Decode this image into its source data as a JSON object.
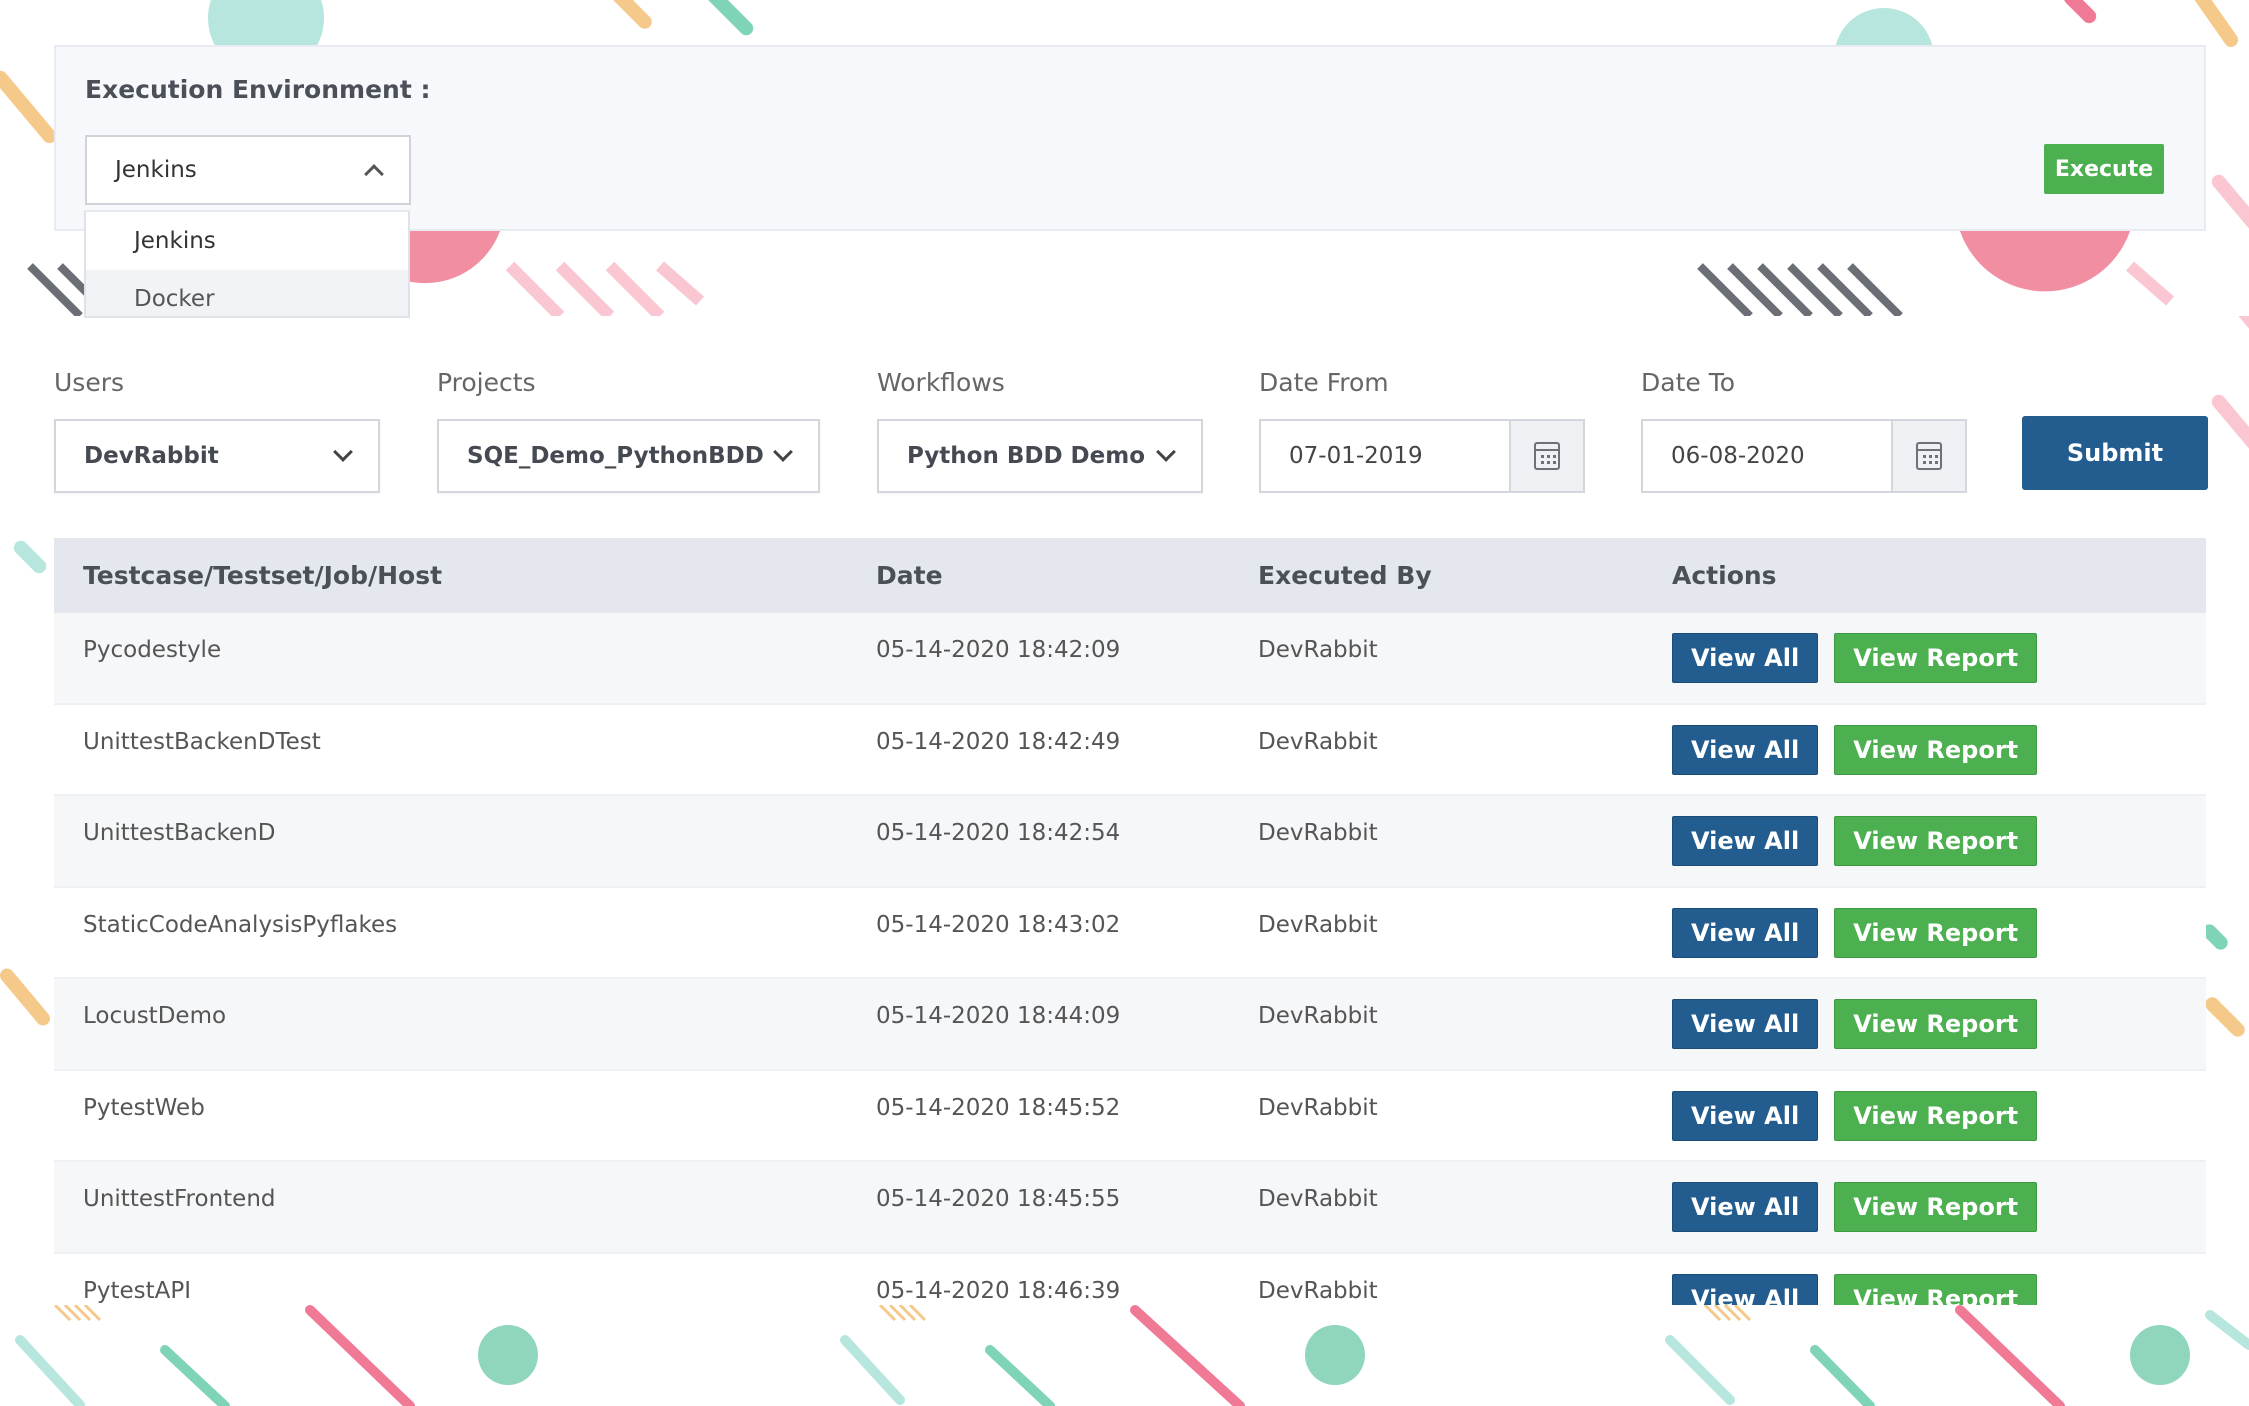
{
  "environment": {
    "label": "Execution Environment :",
    "selected": "Jenkins",
    "options": [
      "Jenkins",
      "Docker"
    ],
    "execute_label": "Execute"
  },
  "filters": {
    "users": {
      "label": "Users",
      "value": "DevRabbit"
    },
    "projects": {
      "label": "Projects",
      "value": "SQE_Demo_PythonBDD"
    },
    "workflows": {
      "label": "Workflows",
      "value": "Python BDD Demo"
    },
    "date_from": {
      "label": "Date From",
      "value": "07-01-2019"
    },
    "date_to": {
      "label": "Date To",
      "value": "06-08-2020"
    },
    "submit_label": "Submit"
  },
  "table": {
    "headers": [
      "Testcase/Testset/Job/Host",
      "Date",
      "Executed By",
      "Actions"
    ],
    "view_all_label": "View All",
    "view_report_label": "View Report",
    "rows": [
      {
        "name": "Pycodestyle",
        "date": "05-14-2020 18:42:09",
        "executed_by": "DevRabbit"
      },
      {
        "name": "UnittestBackenDTest",
        "date": "05-14-2020 18:42:49",
        "executed_by": "DevRabbit"
      },
      {
        "name": "UnittestBackenD",
        "date": "05-14-2020 18:42:54",
        "executed_by": "DevRabbit"
      },
      {
        "name": "StaticCodeAnalysisPyflakes",
        "date": "05-14-2020 18:43:02",
        "executed_by": "DevRabbit"
      },
      {
        "name": "LocustDemo",
        "date": "05-14-2020 18:44:09",
        "executed_by": "DevRabbit"
      },
      {
        "name": "PytestWeb",
        "date": "05-14-2020 18:45:52",
        "executed_by": "DevRabbit"
      },
      {
        "name": "UnittestFrontend",
        "date": "05-14-2020 18:45:55",
        "executed_by": "DevRabbit"
      },
      {
        "name": "PytestAPI",
        "date": "05-14-2020 18:46:39",
        "executed_by": "DevRabbit"
      }
    ]
  },
  "colors": {
    "primary": "#235c8e",
    "success": "#4caf50",
    "header_bg": "#e4e7ee"
  },
  "icons": {
    "chevron_up": "chevron-up-icon",
    "chevron_down": "chevron-down-icon",
    "calendar": "calendar-icon"
  }
}
